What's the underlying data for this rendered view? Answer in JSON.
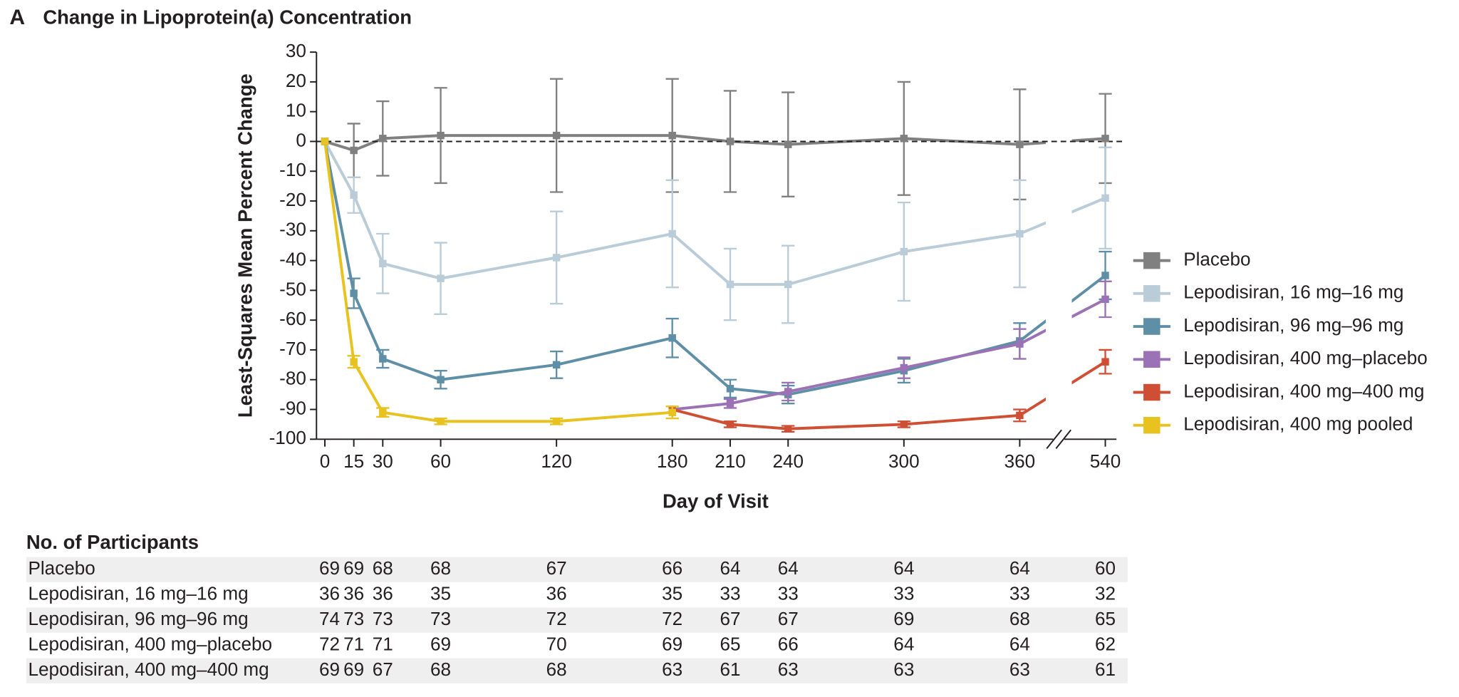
{
  "chart_data": {
    "type": "line",
    "panel": "A",
    "title": "Change in Lipoprotein(a) Concentration",
    "x_label": "Day of Visit",
    "y_label": "Least-Squares Mean Percent Change",
    "x": [
      0,
      15,
      30,
      60,
      120,
      180,
      210,
      240,
      300,
      360,
      540
    ],
    "xlim": [
      0,
      540
    ],
    "xticks": [
      0,
      15,
      30,
      60,
      120,
      180,
      210,
      240,
      300,
      360,
      540
    ],
    "x_break": true,
    "ylim": [
      -100,
      30
    ],
    "yticks": [
      30,
      20,
      10,
      0,
      -10,
      -20,
      -30,
      -40,
      -50,
      -60,
      -70,
      -80,
      -90,
      -100
    ],
    "reference_line": 0,
    "series": [
      {
        "name": "Placebo",
        "color": "#808081",
        "values": [
          0,
          -3,
          1,
          2,
          2,
          2,
          0,
          -1,
          1,
          -1,
          1
        ],
        "errors": [
          null,
          9,
          12.5,
          16,
          19,
          19,
          17,
          17.5,
          19,
          18.5,
          15
        ]
      },
      {
        "name": "Lepodisiran, 16 mg–16 mg",
        "color": "#b9ccd7",
        "values": [
          0,
          -18,
          -41,
          -46,
          -39,
          -31,
          -48,
          -48,
          -37,
          -31,
          -19
        ],
        "errors": [
          null,
          6,
          10,
          12,
          15.5,
          18,
          12,
          13,
          16.5,
          18,
          17
        ]
      },
      {
        "name": "Lepodisiran, 96 mg–96 mg",
        "color": "#5f8fa6",
        "values": [
          0,
          -51,
          -73,
          -80,
          -75,
          -66,
          -83,
          -85,
          -77,
          -67,
          -45
        ],
        "errors": [
          null,
          5,
          3,
          3,
          4.5,
          6.5,
          3,
          3,
          4,
          6,
          8
        ]
      },
      {
        "name": "Lepodisiran, 400 mg–placebo",
        "color": "#9b72b5",
        "values": [
          null,
          null,
          null,
          null,
          null,
          -90,
          -88,
          -84,
          -76,
          -68,
          -53
        ],
        "errors": [
          null,
          null,
          null,
          null,
          null,
          null,
          1.5,
          3,
          3.5,
          5,
          6
        ]
      },
      {
        "name": "Lepodisiran, 400 mg–400 mg",
        "color": "#cf4f35",
        "values": [
          null,
          null,
          null,
          null,
          null,
          -90,
          -95,
          -96.5,
          -95,
          -92,
          -74
        ],
        "errors": [
          null,
          null,
          null,
          null,
          null,
          null,
          1,
          1,
          1,
          2,
          4
        ]
      },
      {
        "name": "Lepodisiran, 400 mg pooled",
        "color": "#e8c21e",
        "values": [
          0,
          -74,
          -91,
          -94,
          -94,
          -91,
          null,
          null,
          null,
          null,
          null
        ],
        "errors": [
          null,
          2,
          1.5,
          1,
          1,
          2,
          null,
          null,
          null,
          null,
          null
        ]
      }
    ]
  },
  "participants_table": {
    "title": "No. of Participants",
    "rows": [
      {
        "label": "Placebo",
        "counts": [
          69,
          69,
          68,
          68,
          67,
          66,
          64,
          64,
          64,
          64,
          60
        ]
      },
      {
        "label": "Lepodisiran, 16 mg–16 mg",
        "counts": [
          36,
          36,
          36,
          35,
          36,
          35,
          33,
          33,
          33,
          33,
          32
        ]
      },
      {
        "label": "Lepodisiran, 96 mg–96 mg",
        "counts": [
          74,
          73,
          73,
          73,
          72,
          72,
          67,
          67,
          69,
          68,
          65
        ]
      },
      {
        "label": "Lepodisiran, 400 mg–placebo",
        "counts": [
          72,
          71,
          71,
          69,
          70,
          69,
          65,
          66,
          64,
          64,
          62
        ]
      },
      {
        "label": "Lepodisiran, 400 mg–400 mg",
        "counts": [
          69,
          69,
          67,
          68,
          68,
          63,
          61,
          63,
          63,
          63,
          61
        ]
      }
    ]
  }
}
